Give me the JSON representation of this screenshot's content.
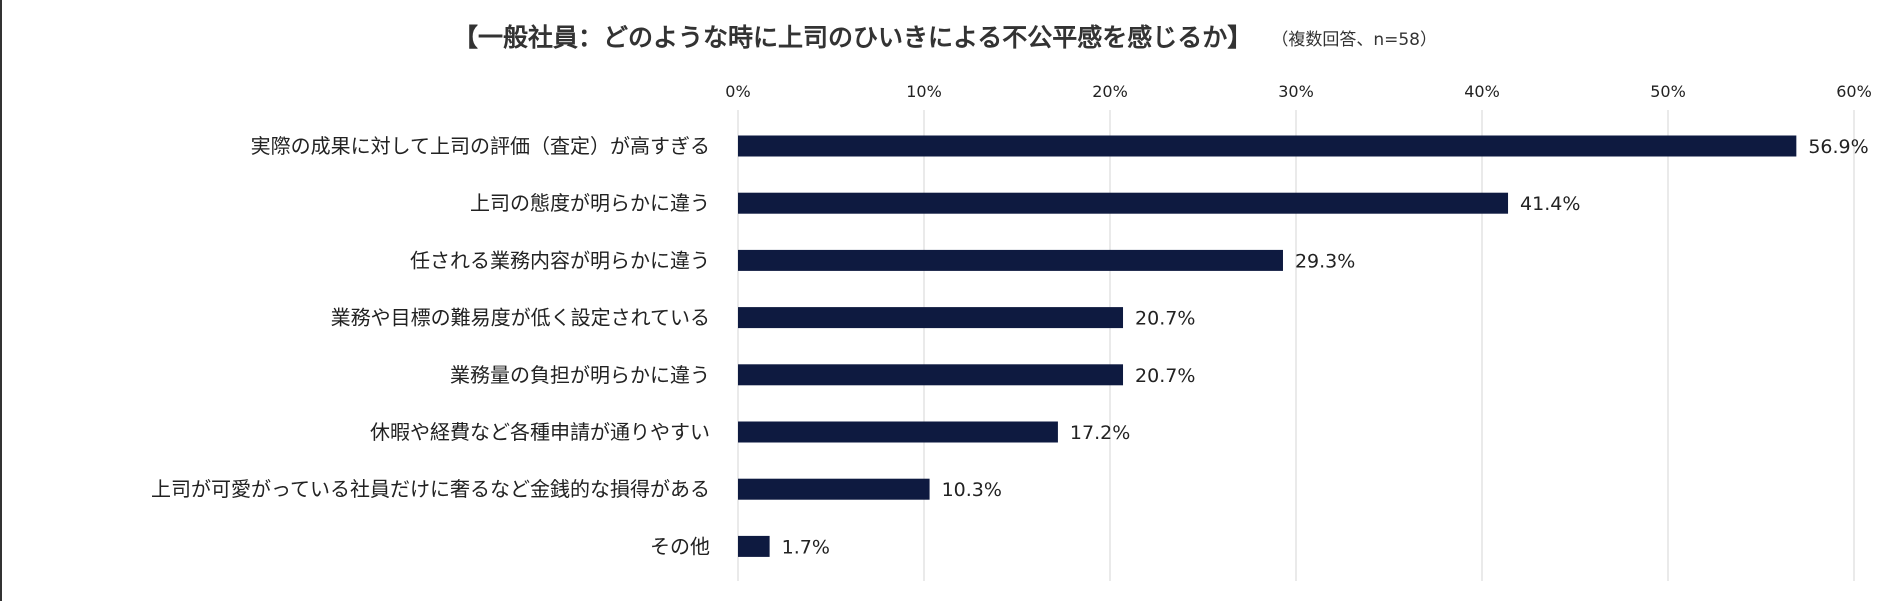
{
  "chart_data": {
    "type": "bar",
    "orientation": "horizontal",
    "title": "【一般社員：どのような時に上司のひいきによる不公平感を感じるか】",
    "subtitle": "（複数回答、n=58）",
    "categories": [
      "実際の成果に対して上司の評価（査定）が高すぎる",
      "上司の態度が明らかに違う",
      "任される業務内容が明らかに違う",
      "業務や目標の難易度が低く設定されている",
      "業務量の負担が明らかに違う",
      "休暇や経費など各種申請が通りやすい",
      "上司が可愛がっている社員だけに奢るなど金銭的な損得がある",
      "その他"
    ],
    "values": [
      56.9,
      41.4,
      29.3,
      20.7,
      20.7,
      17.2,
      10.3,
      1.7
    ],
    "value_labels": [
      "56.9%",
      "41.4%",
      "29.3%",
      "20.7%",
      "20.7%",
      "17.2%",
      "10.3%",
      "1.7%"
    ],
    "xlim": [
      0,
      60
    ],
    "x_ticks": [
      0,
      10,
      20,
      30,
      40,
      50,
      60
    ],
    "x_tick_labels": [
      "0%",
      "10%",
      "20%",
      "30%",
      "40%",
      "50%",
      "60%"
    ],
    "x_axis_position": "top",
    "grid": true,
    "bar_color": "#0e1a40",
    "grid_color": "#d4d4d4"
  }
}
